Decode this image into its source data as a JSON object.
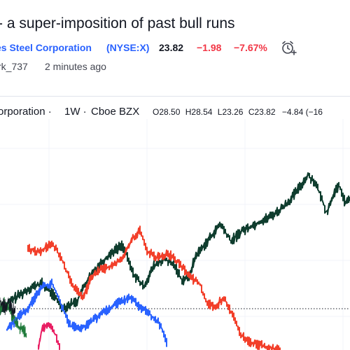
{
  "idea": {
    "title": "- a super-imposition of past bull runs",
    "symbol_name": "es Steel Corporation",
    "exchange_symbol": "(NYSE:X)",
    "price": "23.82",
    "change": "−1.98",
    "change_pct": "−7.67%",
    "author": "rk_737",
    "published": "2 minutes ago"
  },
  "legend": {
    "name": "orporation",
    "separator1": "·",
    "timeframe": "1W",
    "separator2": "·",
    "source": "Cboe BZX",
    "open_label": "O",
    "open": "28.50",
    "high_label": "H",
    "high": "28.54",
    "low_label": "L",
    "low": "23.26",
    "close_label": "C",
    "close": "23.82",
    "change": "−4.84",
    "change_pct": "(−16"
  },
  "colors": {
    "link": "#2962ff",
    "down": "#f23645",
    "series_dark_green": "#0f3d2e",
    "series_red": "#f23f2a",
    "series_blue": "#2962ff",
    "series_pink": "#e91e63",
    "series_green": "#1f7a3a"
  },
  "icons": {
    "alarm": "alarm-clock-plus-icon"
  }
}
